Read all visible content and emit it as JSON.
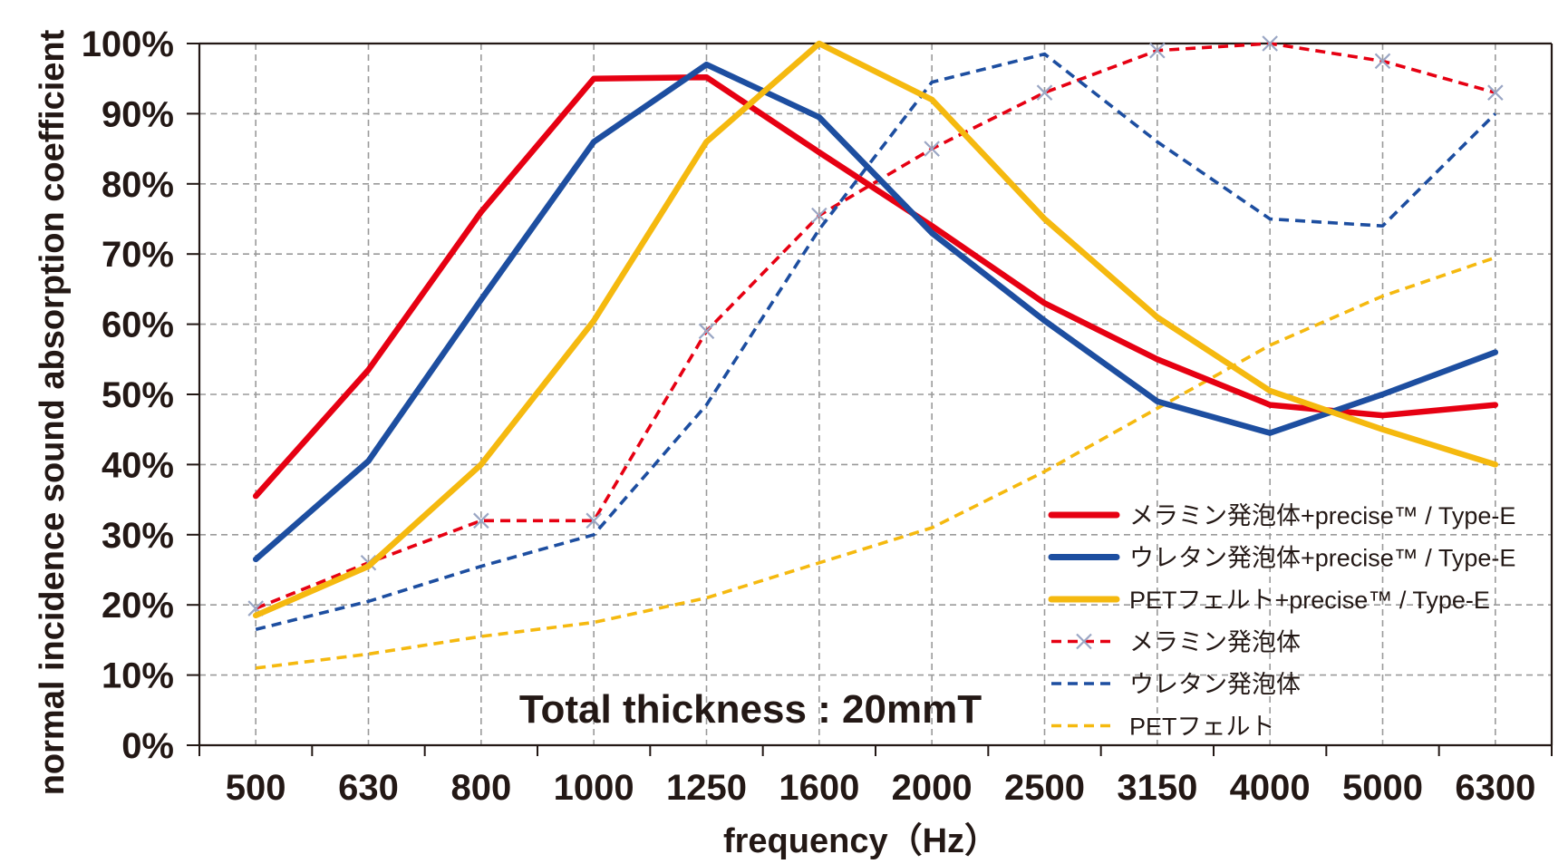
{
  "chart_data": {
    "type": "line",
    "title": "",
    "annotation": "Total thickness : 20mmT",
    "xlabel": "frequency（Hz）",
    "ylabel": "normal incidence sound absorption coefficient",
    "categories": [
      "500",
      "630",
      "800",
      "1000",
      "1250",
      "1600",
      "2000",
      "2500",
      "3150",
      "4000",
      "5000",
      "6300"
    ],
    "y_ticks": [
      "0%",
      "10%",
      "20%",
      "30%",
      "40%",
      "50%",
      "60%",
      "70%",
      "80%",
      "90%",
      "100%"
    ],
    "ylim": [
      0,
      100
    ],
    "grid": true,
    "legend_position": "bottom-right",
    "series": [
      {
        "name": "メラミン発泡体+precise™ / Type-E",
        "style": "solid",
        "color": "#e60012",
        "values": [
          35.5,
          53.5,
          76,
          95,
          95.2,
          84.5,
          74,
          63,
          55,
          48.5,
          47,
          48.5
        ]
      },
      {
        "name": "ウレタン発泡体+precise™ / Type-E",
        "style": "solid",
        "color": "#1d4ea0",
        "values": [
          26.5,
          40.5,
          63.5,
          86,
          97,
          89.5,
          73,
          60.5,
          49,
          44.5,
          50,
          56
        ]
      },
      {
        "name": "PETフェルト+precise™ / Type-E",
        "style": "solid",
        "color": "#f5b90f",
        "values": [
          18.5,
          25.5,
          40,
          60.5,
          86,
          100,
          92,
          75,
          61,
          50.5,
          45,
          40
        ]
      },
      {
        "name": "メラミン発泡体",
        "style": "dashed",
        "marker": "x",
        "color": "#e60012",
        "values": [
          19.5,
          26,
          32,
          32,
          59,
          75.5,
          85,
          93,
          99,
          100,
          97.5,
          93
        ]
      },
      {
        "name": "ウレタン発泡体",
        "style": "dashed",
        "color": "#1d4ea0",
        "values": [
          16.5,
          20.5,
          25.5,
          30,
          48.5,
          73.5,
          94.5,
          98.5,
          86,
          75,
          74,
          90
        ]
      },
      {
        "name": "PETフェルト",
        "style": "dashed",
        "color": "#f5b90f",
        "values": [
          11,
          13,
          15.5,
          17.5,
          21,
          26,
          31,
          39,
          48,
          57,
          64,
          69.5
        ]
      }
    ]
  }
}
